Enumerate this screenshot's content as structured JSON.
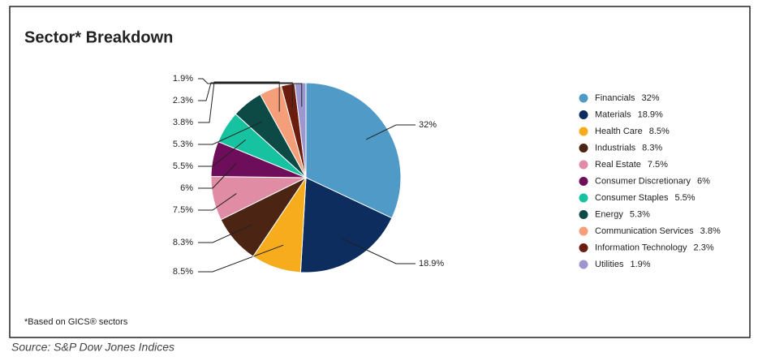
{
  "chart_data": {
    "type": "pie",
    "title": "Sector* Breakdown",
    "categories": [
      "Financials",
      "Materials",
      "Health Care",
      "Industrials",
      "Real Estate",
      "Consumer Discretionary",
      "Consumer Staples",
      "Energy",
      "Communication Services",
      "Information Technology",
      "Utilities"
    ],
    "values": [
      32,
      18.9,
      8.5,
      8.3,
      7.5,
      6,
      5.5,
      5.3,
      3.8,
      2.3,
      1.9
    ],
    "value_labels": [
      "32%",
      "18.9%",
      "8.5%",
      "8.3%",
      "7.5%",
      "6%",
      "5.5%",
      "5.3%",
      "3.8%",
      "2.3%",
      "1.9%"
    ],
    "colors": [
      "#4f9ac6",
      "#0c2d5e",
      "#f6ac1c",
      "#4b2414",
      "#e08ca5",
      "#6e0d5a",
      "#17c2a0",
      "#0d4a45",
      "#f59e7a",
      "#6b1e0f",
      "#9d97cf"
    ],
    "legend": "right",
    "footnote": "*Based on GICS® sectors",
    "source": "Source: S&P Dow Jones Indices"
  }
}
